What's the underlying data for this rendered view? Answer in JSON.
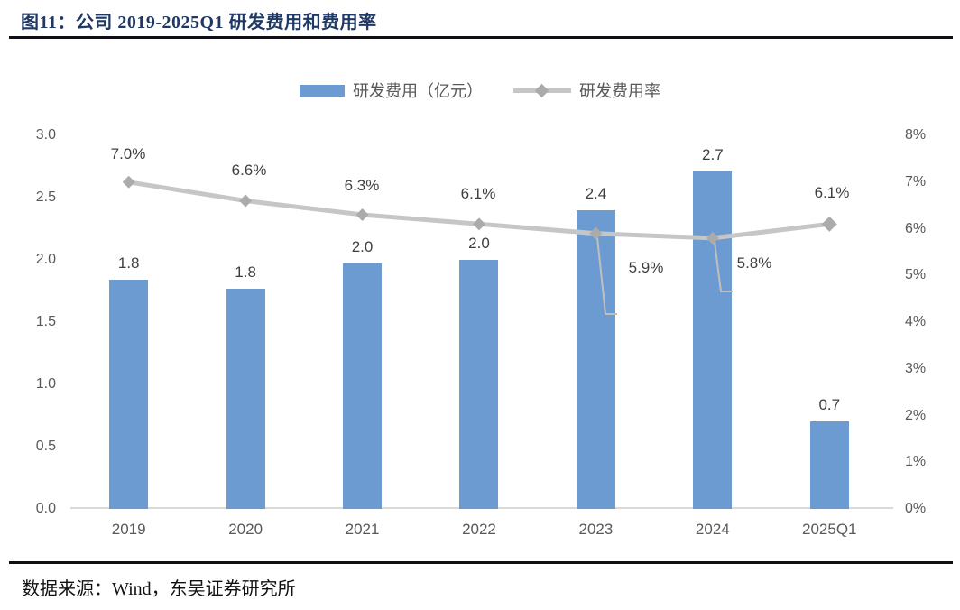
{
  "figure": {
    "title": "图11：公司 2019-2025Q1 研发费用和费用率",
    "source": "数据来源：Wind，东吴证券研究所"
  },
  "chart_data": {
    "type": "combo-bar-line",
    "title": "公司 2019-2025Q1 研发费用和费用率",
    "categories": [
      "2019",
      "2020",
      "2021",
      "2022",
      "2023",
      "2024",
      "2025Q1"
    ],
    "series": [
      {
        "name": "研发费用（亿元）",
        "type": "bar",
        "axis": "left",
        "values": [
          1.8,
          1.8,
          2.0,
          2.0,
          2.4,
          2.7,
          0.7
        ],
        "labels": [
          "1.8",
          "1.8",
          "2.0",
          "2.0",
          "2.4",
          "2.7",
          "0.7"
        ],
        "color": "#6C9BD2"
      },
      {
        "name": "研发费用率",
        "type": "line",
        "axis": "right",
        "values": [
          7.0,
          6.6,
          6.3,
          6.1,
          5.9,
          5.8,
          6.1
        ],
        "labels": [
          "7.0%",
          "6.6%",
          "6.3%",
          "6.1%",
          "5.9%",
          "5.8%",
          "6.1%"
        ],
        "color": "#C6C6C6",
        "marker_color": "#ABABAB"
      }
    ],
    "left_axis": {
      "min": 0,
      "max": 3,
      "ticks": [
        "3.0",
        "2.5",
        "2.0",
        "1.5",
        "1.0",
        "0.5",
        "0.0"
      ]
    },
    "right_axis": {
      "min": 0,
      "max": 8,
      "ticks": [
        "8%",
        "7%",
        "6%",
        "5%",
        "4%",
        "3%",
        "2%",
        "1%",
        "0%"
      ]
    },
    "legend": {
      "position": "top",
      "entries": [
        "研发费用（亿元）",
        "研发费用率"
      ]
    },
    "grid": false,
    "bar_values_precise": [
      1.84,
      1.77,
      1.97,
      2.0,
      2.4,
      2.71,
      0.7
    ]
  }
}
